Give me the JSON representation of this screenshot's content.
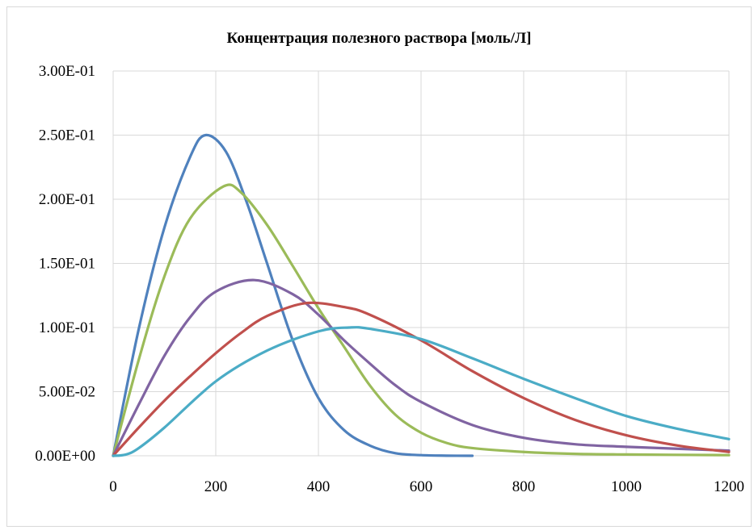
{
  "chart_data": {
    "type": "line",
    "title": "Концентрация полезного раствора [моль/Л]",
    "xlabel": "",
    "ylabel": "",
    "xlim": [
      0,
      1200
    ],
    "ylim": [
      0,
      0.3
    ],
    "x_ticks": [
      "0",
      "200",
      "400",
      "600",
      "800",
      "1000",
      "1200"
    ],
    "y_ticks": [
      "0.00E+00",
      "5.00E-02",
      "1.00E-01",
      "1.50E-01",
      "2.00E-01",
      "2.50E-01",
      "3.00E-01"
    ],
    "grid": true,
    "legend": "none",
    "series": [
      {
        "color": "#4f81bd",
        "x": [
          0,
          50,
          100,
          150,
          180,
          220,
          260,
          300,
          350,
          400,
          450,
          500,
          550,
          600,
          650,
          700
        ],
        "y": [
          0,
          0.099,
          0.178,
          0.233,
          0.25,
          0.237,
          0.198,
          0.15,
          0.09,
          0.045,
          0.02,
          0.008,
          0.002,
          0.0005,
          0.0001,
          0.0
        ]
      },
      {
        "color": "#9bbb59",
        "x": [
          0,
          50,
          100,
          150,
          215,
          250,
          300,
          350,
          400,
          450,
          500,
          550,
          600,
          650,
          700,
          800,
          900,
          1000,
          1200
        ],
        "y": [
          0,
          0.075,
          0.14,
          0.185,
          0.21,
          0.205,
          0.18,
          0.148,
          0.115,
          0.085,
          0.055,
          0.032,
          0.018,
          0.01,
          0.006,
          0.003,
          0.0015,
          0.001,
          0.0005
        ]
      },
      {
        "color": "#8064a2",
        "x": [
          0,
          50,
          100,
          150,
          200,
          275,
          350,
          400,
          450,
          500,
          550,
          600,
          700,
          800,
          900,
          1000,
          1200
        ],
        "y": [
          0,
          0.04,
          0.078,
          0.108,
          0.128,
          0.137,
          0.126,
          0.11,
          0.09,
          0.072,
          0.055,
          0.042,
          0.024,
          0.014,
          0.009,
          0.007,
          0.004
        ]
      },
      {
        "color": "#c0504d",
        "x": [
          0,
          50,
          100,
          150,
          200,
          250,
          300,
          375,
          450,
          500,
          600,
          700,
          800,
          900,
          1000,
          1100,
          1200
        ],
        "y": [
          0,
          0.022,
          0.043,
          0.062,
          0.08,
          0.096,
          0.109,
          0.119,
          0.116,
          0.11,
          0.09,
          0.066,
          0.045,
          0.028,
          0.016,
          0.008,
          0.003
        ]
      },
      {
        "color": "#4bacc6",
        "x": [
          0,
          25,
          50,
          100,
          200,
          300,
          400,
          460,
          500,
          600,
          700,
          800,
          900,
          1000,
          1100,
          1200
        ],
        "y": [
          0,
          0.001,
          0.006,
          0.022,
          0.058,
          0.082,
          0.097,
          0.1,
          0.099,
          0.091,
          0.076,
          0.06,
          0.045,
          0.031,
          0.021,
          0.013
        ]
      }
    ]
  }
}
